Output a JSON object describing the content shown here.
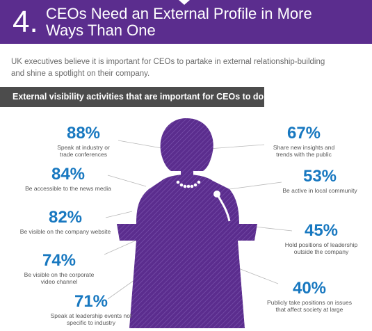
{
  "header": {
    "number": "4.",
    "title": "CEOs Need an External Profile in More Ways Than One"
  },
  "intro": "UK executives believe it is important for CEOs to partake in external relationship-building and shine a spotlight on their company.",
  "section_title": "External visibility activities that are important for CEOs to do",
  "colors": {
    "header_bg": "#5b2d8e",
    "figure_purple": "#5b2d8e",
    "accent_blue": "#1878c0",
    "bar_bg": "#4c4c4c"
  },
  "chart_data": {
    "type": "table",
    "title": "External visibility activities that are important for CEOs to do",
    "items": [
      {
        "value": "88%",
        "label_lines": [
          "Speak at industry or",
          "trade conferences"
        ]
      },
      {
        "value": "84%",
        "label_lines": [
          "Be accessible to the news media"
        ]
      },
      {
        "value": "82%",
        "label_lines": [
          "Be visible on the company website"
        ]
      },
      {
        "value": "74%",
        "label_lines": [
          "Be visible on the corporate",
          "video channel"
        ]
      },
      {
        "value": "71%",
        "label_lines": [
          "Speak at leadership events not",
          "specific to industry"
        ]
      },
      {
        "value": "67%",
        "label_lines": [
          "Share new insights and",
          "trends with the public"
        ]
      },
      {
        "value": "53%",
        "label_lines": [
          "Be active in local community"
        ]
      },
      {
        "value": "45%",
        "label_lines": [
          "Hold positions of leadership",
          "outside the company"
        ]
      },
      {
        "value": "40%",
        "label_lines": [
          "Publicly take positions on issues",
          "that affect society at large"
        ]
      }
    ]
  }
}
